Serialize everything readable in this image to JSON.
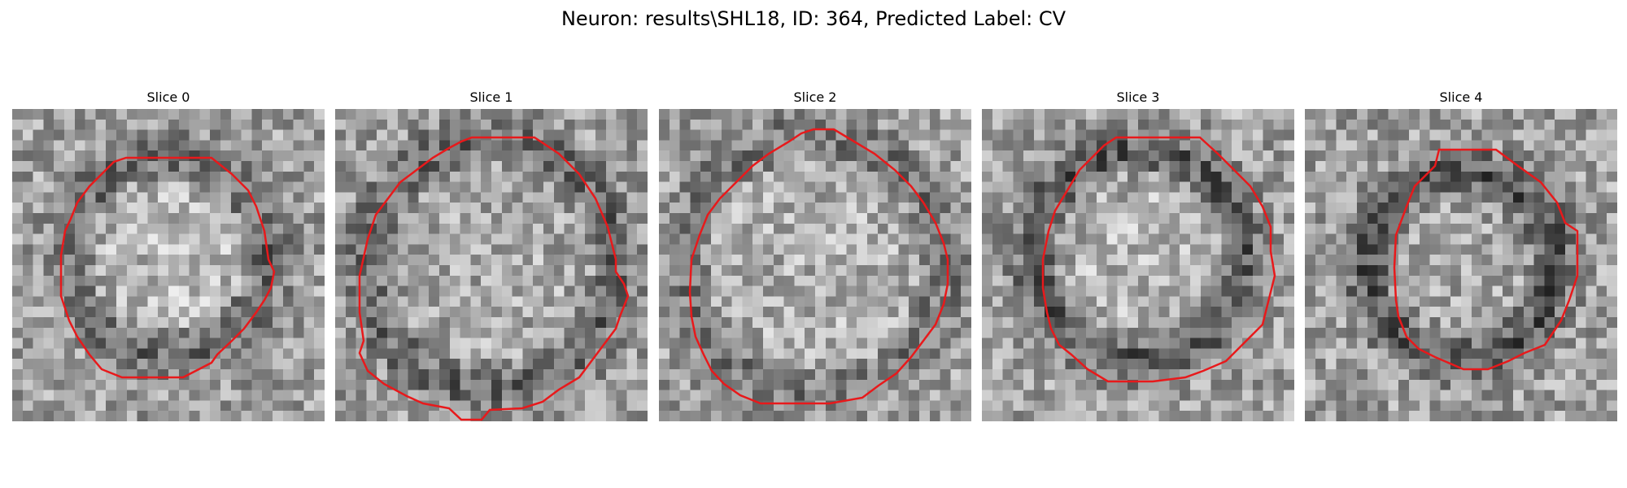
{
  "figure": {
    "title": "Neuron: results\\SHL18, ID: 364, Predicted Label: CV"
  },
  "panels": [
    {
      "title": "Slice 0"
    },
    {
      "title": "Slice 1"
    },
    {
      "title": "Slice 2"
    },
    {
      "title": "Slice 3"
    },
    {
      "title": "Slice 4"
    }
  ],
  "style": {
    "contour_color": "#e8191b",
    "colormap": "gray"
  }
}
